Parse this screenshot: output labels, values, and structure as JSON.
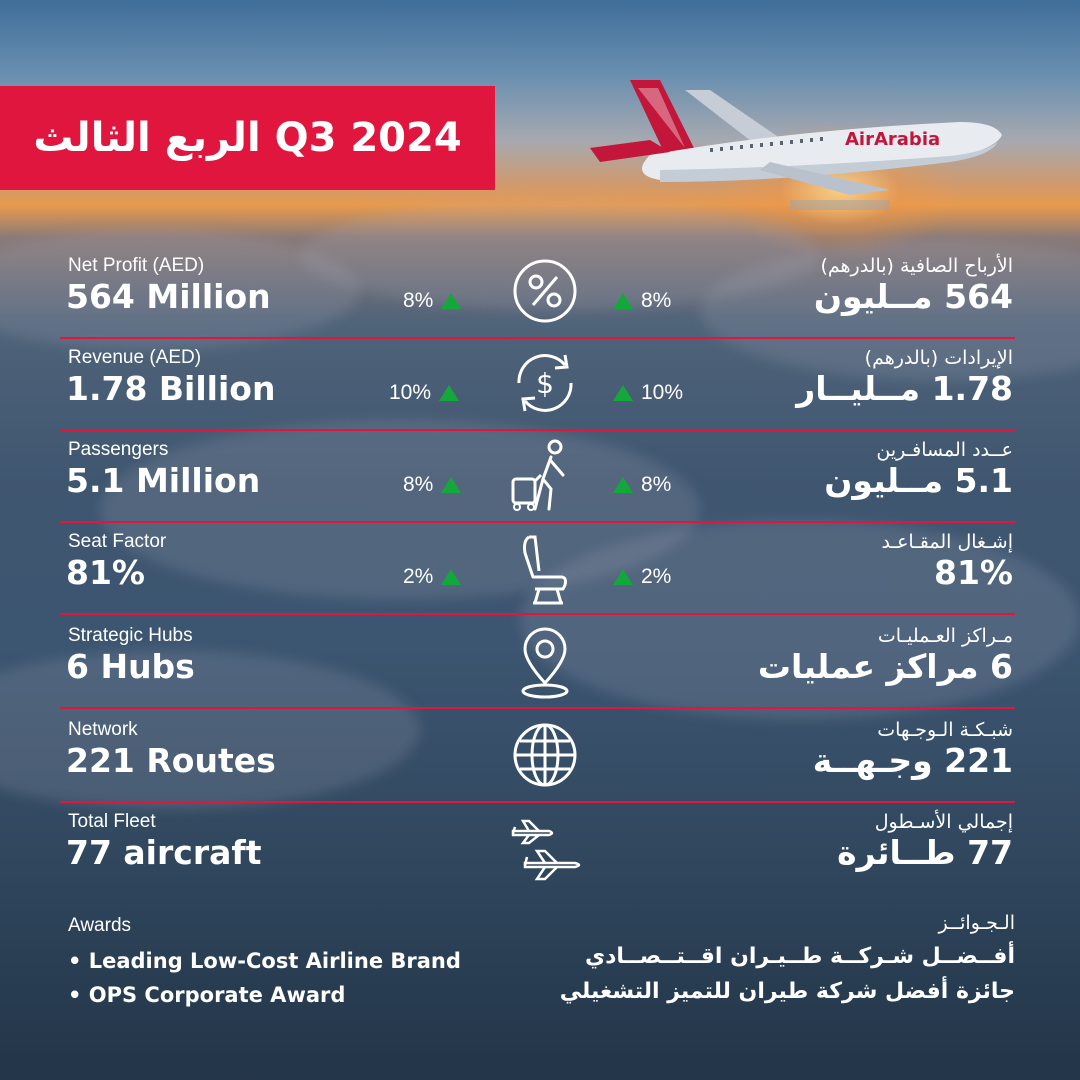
{
  "title": "الربع الثالث Q3 2024",
  "brand": {
    "logo_text": "AirArabia",
    "accent_color": "#e0163e",
    "up_color": "#14a83c"
  },
  "metrics": [
    {
      "en_label": "Net Profit (AED)",
      "en_value": "564 Million",
      "change_en": "8%",
      "change_ar": "8%",
      "icon": "percent-icon",
      "ar_label": "الأرباح الصافية (بالدرهم)",
      "ar_value": "564 مــليون"
    },
    {
      "en_label": "Revenue (AED)",
      "en_value": "1.78 Billion",
      "change_en": "10%",
      "change_ar": "10%",
      "icon": "dollar-cycle-icon",
      "ar_label": "الإيرادات (بالدرهم)",
      "ar_value": "1.78 مــليــار"
    },
    {
      "en_label": "Passengers",
      "en_value": "5.1 Million",
      "change_en": "8%",
      "change_ar": "8%",
      "icon": "traveler-icon",
      "ar_label": "عــدد المسافـرين",
      "ar_value": "5.1 مــليون"
    },
    {
      "en_label": "Seat Factor",
      "en_value": "81%",
      "change_en": "2%",
      "change_ar": "2%",
      "icon": "seat-icon",
      "ar_label": "إشـغال المقـاعـد",
      "ar_value": "81%"
    },
    {
      "en_label": "Strategic Hubs",
      "en_value": "6 Hubs",
      "icon": "location-pin-icon",
      "ar_label": "مـراكز العـمليـات",
      "ar_value": "6 مراكز عمليات"
    },
    {
      "en_label": "Network",
      "en_value": "221 Routes",
      "icon": "globe-icon",
      "ar_label": "شبـكـة الـوجـهات",
      "ar_value": "221 وجـهــة"
    },
    {
      "en_label": "Total Fleet",
      "en_value": "77 aircraft",
      "icon": "airplanes-icon",
      "ar_label": "إجمالي الأسـطول",
      "ar_value": "77 طــائرة"
    }
  ],
  "awards": {
    "en_heading": "Awards",
    "en_items": [
      "• Leading Low-Cost Airline Brand",
      "• OPS Corporate Award"
    ],
    "ar_heading": "الـجـوائــز",
    "ar_items": [
      "أفــضــل شـركــة طــيـران اقــتــصــادي",
      "جائزة أفضل شركة طيران للتميز التشغيلي"
    ]
  }
}
